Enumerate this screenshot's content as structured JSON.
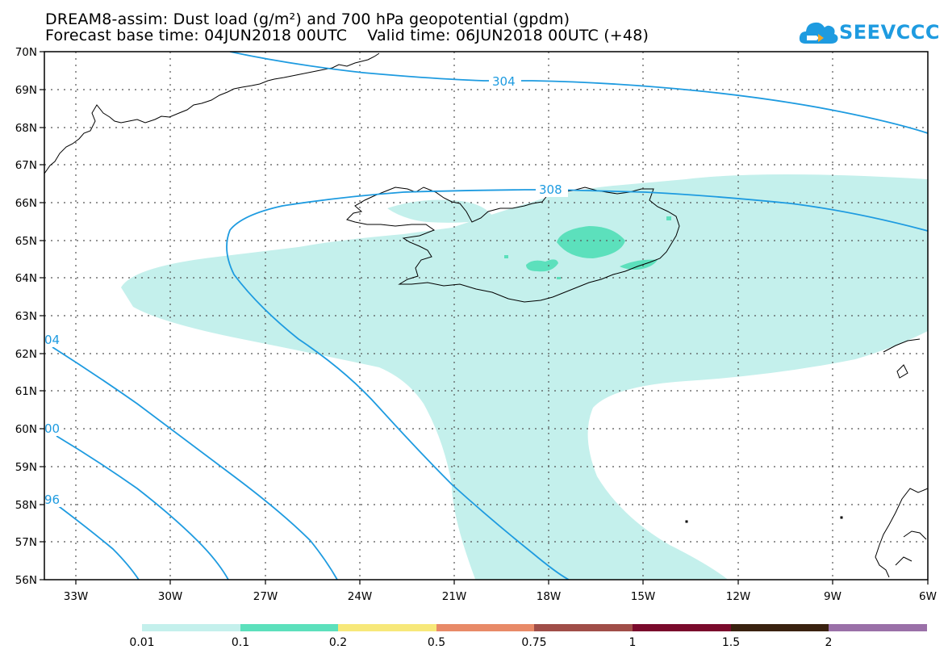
{
  "header": {
    "title_line1": "DREAM8-assim: Dust load (g/m²) and 700 hPa geopotential (gpdm)",
    "title_line2": "Forecast base time: 04JUN2018 00UTC    Valid time: 06JUN2018 00UTC (+48)"
  },
  "logo": {
    "text": "SEEVCCC",
    "color": "#1e9be0"
  },
  "map": {
    "lat_labels": [
      "70N",
      "69N",
      "68N",
      "67N",
      "66N",
      "65N",
      "64N",
      "63N",
      "62N",
      "61N",
      "60N",
      "59N",
      "58N",
      "57N",
      "56N"
    ],
    "lon_labels": [
      "33W",
      "30W",
      "27W",
      "24W",
      "21W",
      "18W",
      "15W",
      "12W",
      "9W",
      "6W"
    ],
    "contour_labels": {
      "c304": "304",
      "c308": "308",
      "c304_left": "04",
      "c300": "00",
      "c296": "96"
    },
    "contour_color": "#1e9be0",
    "dust_low_color": "#c4f0ec",
    "dust_mid_color": "#5ce0bc",
    "coast_color": "#000000"
  },
  "colorbar": {
    "segments": [
      {
        "color": "#c4f0ec"
      },
      {
        "color": "#5ce0bc"
      },
      {
        "color": "#f7e87a"
      },
      {
        "color": "#e88a68"
      },
      {
        "color": "#a04e48"
      },
      {
        "color": "#7a0a2c"
      },
      {
        "color": "#3a2210"
      },
      {
        "color": "#9a70a8"
      }
    ],
    "labels": [
      "0.01",
      "0.1",
      "0.2",
      "0.5",
      "0.75",
      "1",
      "1.5",
      "2"
    ]
  }
}
